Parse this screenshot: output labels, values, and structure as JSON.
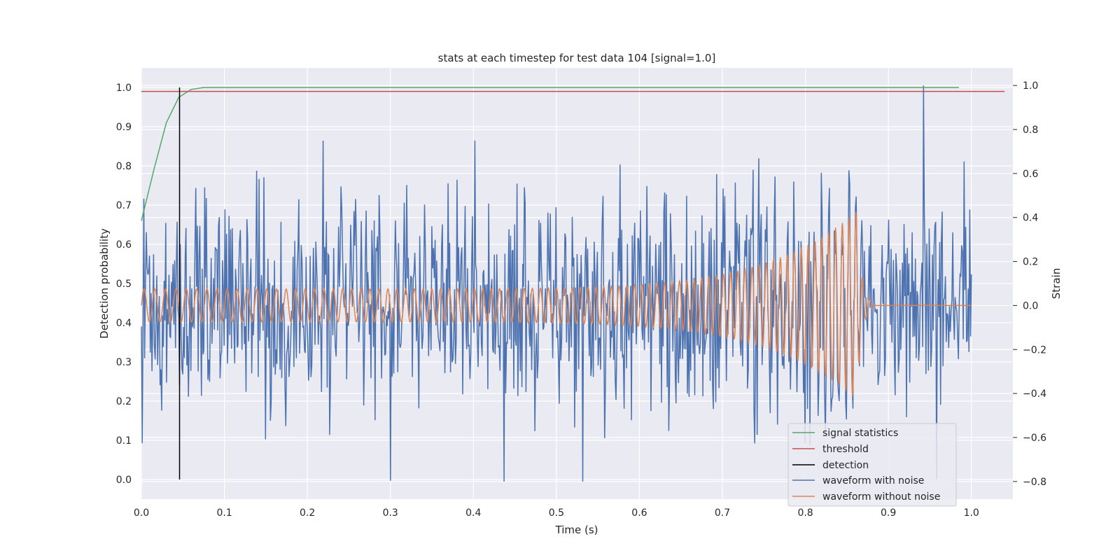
{
  "chart_data": {
    "type": "line",
    "title": "stats at each timestep for test data 104 [signal=1.0]",
    "xlabel": "Time (s)",
    "ylabel": "Detection probability",
    "y2label": "Strain",
    "xlim": [
      0.0,
      1.05
    ],
    "ylim": [
      -0.05,
      1.05
    ],
    "y2lim": [
      -0.88,
      1.08
    ],
    "x_ticks": [
      "0.0",
      "0.1",
      "0.2",
      "0.3",
      "0.4",
      "0.5",
      "0.6",
      "0.7",
      "0.8",
      "0.9",
      "1.0"
    ],
    "y_ticks": [
      "0.0",
      "0.1",
      "0.2",
      "0.3",
      "0.4",
      "0.5",
      "0.6",
      "0.7",
      "0.8",
      "0.9",
      "1.0"
    ],
    "y2_ticks": [
      "−0.8",
      "−0.6",
      "−0.4",
      "−0.2",
      "0.0",
      "0.2",
      "0.4",
      "0.6",
      "0.8",
      "1.0"
    ],
    "grid": true,
    "legend_position": "lower-right",
    "series": [
      {
        "name": "signal statistics",
        "color": "#55a868",
        "axis": "left",
        "x": [
          0.0,
          0.015,
          0.03,
          0.045,
          0.06,
          0.075,
          0.1,
          0.2,
          0.4,
          0.6,
          0.8,
          0.985
        ],
        "y": [
          0.66,
          0.79,
          0.91,
          0.975,
          0.995,
          1.0,
          1.0,
          1.0,
          1.0,
          1.0,
          1.0,
          1.0
        ]
      },
      {
        "name": "threshold",
        "color": "#c44e52",
        "axis": "left",
        "x": [
          0.0,
          1.04
        ],
        "y": [
          0.99,
          0.99
        ]
      },
      {
        "name": "detection",
        "color": "#000000",
        "axis": "left",
        "x": [
          0.046,
          0.046
        ],
        "y": [
          0.0,
          1.0
        ]
      },
      {
        "name": "waveform with noise",
        "color": "#4c72b0",
        "axis": "right",
        "x_range": [
          0.0,
          1.0
        ],
        "n_points": 1024,
        "noise_std": 0.25,
        "peak": 1.0,
        "min": -0.8
      },
      {
        "name": "waveform without noise",
        "color": "#dd8452",
        "axis": "right",
        "x_range": [
          0.0,
          1.0
        ],
        "n_points": 2048,
        "amplitude_start": 0.075,
        "amplitude_peak": 0.43,
        "merger_time": 0.862,
        "ringdown_end": 0.88,
        "cycles": 77
      }
    ]
  }
}
